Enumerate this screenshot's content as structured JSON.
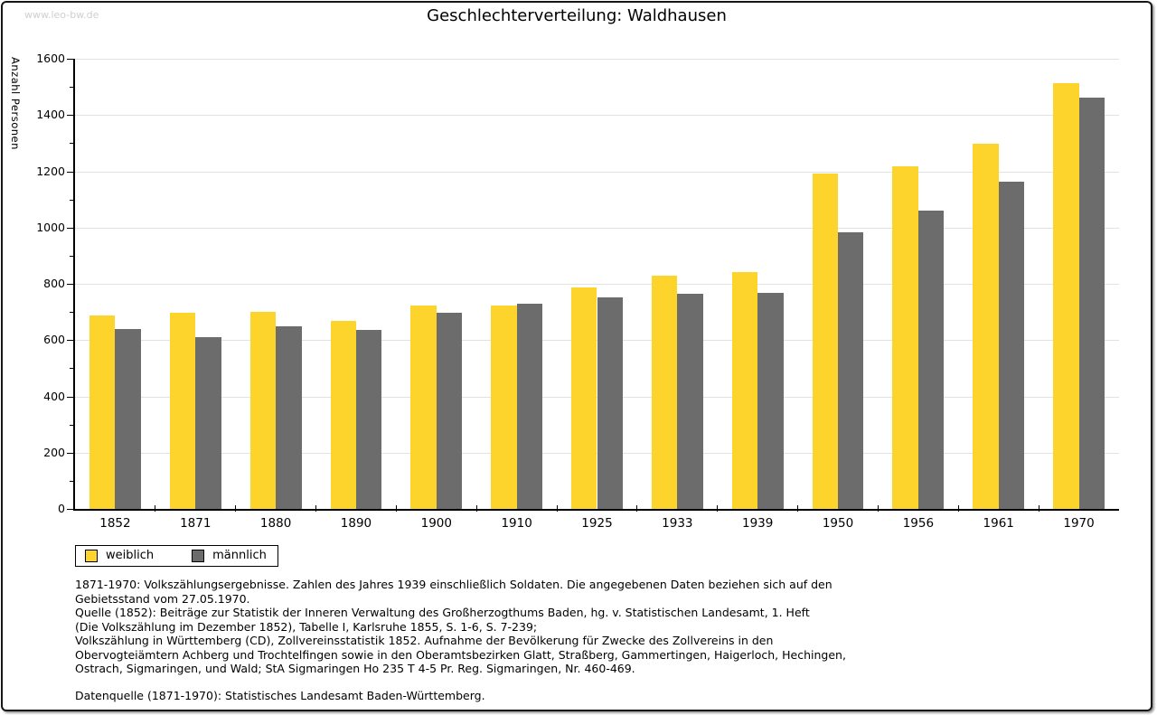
{
  "page": {
    "watermark": "www.leo-bw.de",
    "title": "Geschlechterverteilung: Waldhausen"
  },
  "chart_data": {
    "type": "bar",
    "title": "Geschlechterverteilung: Waldhausen",
    "xlabel": "",
    "ylabel": "Anzahl Personen",
    "ylim": [
      0,
      1600
    ],
    "ytick_step": 200,
    "yminor_step": 100,
    "grid": true,
    "legend_position": "bottom-left",
    "categories": [
      "1852",
      "1871",
      "1880",
      "1890",
      "1900",
      "1910",
      "1925",
      "1933",
      "1939",
      "1950",
      "1956",
      "1961",
      "1970"
    ],
    "series": [
      {
        "name": "weiblich",
        "color": "#FCD42C",
        "values": [
          688,
          698,
          700,
          668,
          722,
          722,
          788,
          828,
          842,
          1192,
          1218,
          1298,
          1514
        ]
      },
      {
        "name": "männlich",
        "color": "#6C6C6C",
        "values": [
          640,
          610,
          650,
          636,
          698,
          728,
          752,
          766,
          768,
          982,
          1060,
          1164,
          1462
        ]
      }
    ]
  },
  "footnotes": {
    "lines": [
      "1871-1970: Volkszählungsergebnisse. Zahlen des Jahres 1939 einschließlich Soldaten. Die angegebenen Daten beziehen sich auf den",
      "Gebietsstand vom 27.05.1970.",
      "Quelle (1852): Beiträge zur Statistik der Inneren Verwaltung des Großherzogthums Baden, hg. v. Statistischen Landesamt, 1. Heft",
      "(Die Volkszählung im Dezember 1852), Tabelle I, Karlsruhe 1855, S. 1-6, S. 7-239;",
      "Volkszählung in Württemberg (CD), Zollvereinsstatistik 1852. Aufnahme der Bevölkerung für Zwecke des Zollvereins in den",
      "Obervogteiämtern Achberg und Trochtelfingen sowie in den Oberamtsbezirken Glatt, Straßberg, Gammertingen, Haigerloch, Hechingen,",
      "Ostrach, Sigmaringen, und Wald; StA Sigmaringen Ho 235 T 4-5 Pr. Reg. Sigmaringen, Nr. 460-469."
    ],
    "datasource": "Datenquelle (1871-1970): Statistisches Landesamt Baden-Württemberg."
  }
}
